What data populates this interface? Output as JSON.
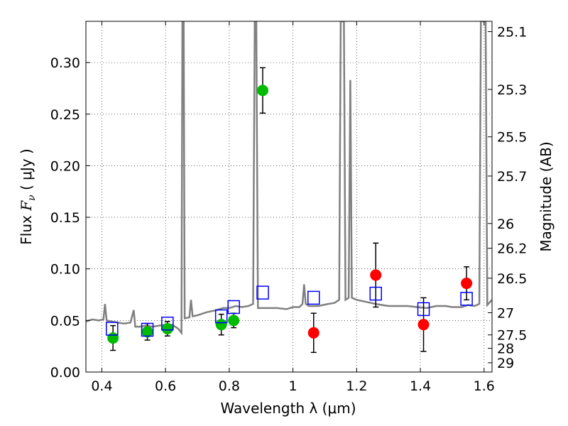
{
  "chart_data": {
    "type": "scatter",
    "xlabel": "Wavelength  λ (μm)",
    "ylabel": "Flux  F_ν  ( μJy )",
    "ylabel_right": "Magnitude (AB)",
    "xlim": [
      0.35,
      1.625
    ],
    "ylim": [
      0.0,
      0.34
    ],
    "grid": true,
    "x_ticks": [
      0.4,
      0.6,
      0.8,
      1.0,
      1.2,
      1.4,
      1.6
    ],
    "x_tick_labels": [
      "0.4",
      "0.6",
      "0.8",
      "1",
      "1.2",
      "1.4",
      "1.6"
    ],
    "y_ticks": [
      0.0,
      0.05,
      0.1,
      0.15,
      0.2,
      0.25,
      0.3
    ],
    "y_tick_labels": [
      "0.00",
      "0.05",
      "0.10",
      "0.15",
      "0.20",
      "0.25",
      "0.30"
    ],
    "right_ticks": [
      {
        "label": "25.1",
        "flux": 0.33
      },
      {
        "label": "25.3",
        "flux": 0.274
      },
      {
        "label": "25.5",
        "flux": 0.228
      },
      {
        "label": "25.7",
        "flux": 0.19
      },
      {
        "label": "26",
        "flux": 0.144
      },
      {
        "label": "26.2",
        "flux": 0.12
      },
      {
        "label": "26.5",
        "flux": 0.091
      },
      {
        "label": "27",
        "flux": 0.0575
      },
      {
        "label": "27.5",
        "flux": 0.036
      },
      {
        "label": "28",
        "flux": 0.023
      },
      {
        "label": "29",
        "flux": 0.009
      }
    ],
    "series": [
      {
        "color": "#00bb00",
        "marker": "circle",
        "points": [
          {
            "x": 0.435,
            "y": 0.033,
            "err": 0.012
          },
          {
            "x": 0.543,
            "y": 0.039,
            "err": 0.008
          },
          {
            "x": 0.606,
            "y": 0.042,
            "err": 0.007
          },
          {
            "x": 0.775,
            "y": 0.046,
            "err": 0.01
          },
          {
            "x": 0.814,
            "y": 0.05,
            "err": 0.007
          },
          {
            "x": 0.905,
            "y": 0.273,
            "err": 0.022
          }
        ]
      },
      {
        "color": "#ff0000",
        "marker": "circle",
        "points": [
          {
            "x": 1.065,
            "y": 0.038,
            "err": 0.019
          },
          {
            "x": 1.26,
            "y": 0.094,
            "err": 0.031
          },
          {
            "x": 1.41,
            "y": 0.046,
            "err": 0.026
          },
          {
            "x": 1.545,
            "y": 0.086,
            "err": 0.016
          }
        ]
      },
      {
        "color": "#0000ff",
        "marker": "open-square",
        "points": [
          {
            "x": 0.432,
            "y": 0.042
          },
          {
            "x": 0.543,
            "y": 0.041
          },
          {
            "x": 0.606,
            "y": 0.047
          },
          {
            "x": 0.775,
            "y": 0.054
          },
          {
            "x": 0.814,
            "y": 0.063
          },
          {
            "x": 0.905,
            "y": 0.077
          },
          {
            "x": 1.065,
            "y": 0.072
          },
          {
            "x": 1.26,
            "y": 0.076
          },
          {
            "x": 1.41,
            "y": 0.061
          },
          {
            "x": 1.545,
            "y": 0.071
          }
        ]
      }
    ],
    "model_spectrum": {
      "color": "#808080",
      "points": [
        [
          0.35,
          0.049
        ],
        [
          0.37,
          0.051
        ],
        [
          0.39,
          0.05
        ],
        [
          0.405,
          0.051
        ],
        [
          0.41,
          0.066
        ],
        [
          0.415,
          0.05
        ],
        [
          0.43,
          0.049
        ],
        [
          0.45,
          0.048
        ],
        [
          0.47,
          0.047
        ],
        [
          0.49,
          0.048
        ],
        [
          0.5,
          0.06
        ],
        [
          0.505,
          0.044
        ],
        [
          0.52,
          0.044
        ],
        [
          0.54,
          0.045
        ],
        [
          0.56,
          0.044
        ],
        [
          0.58,
          0.045
        ],
        [
          0.6,
          0.046
        ],
        [
          0.62,
          0.046
        ],
        [
          0.64,
          0.042
        ],
        [
          0.65,
          0.038
        ],
        [
          0.653,
          0.34
        ],
        [
          0.657,
          0.34
        ],
        [
          0.66,
          0.052
        ],
        [
          0.675,
          0.053
        ],
        [
          0.68,
          0.07
        ],
        [
          0.685,
          0.054
        ],
        [
          0.7,
          0.055
        ],
        [
          0.73,
          0.058
        ],
        [
          0.76,
          0.06
        ],
        [
          0.78,
          0.062
        ],
        [
          0.8,
          0.062
        ],
        [
          0.82,
          0.064
        ],
        [
          0.84,
          0.063
        ],
        [
          0.86,
          0.064
        ],
        [
          0.875,
          0.066
        ],
        [
          0.88,
          0.34
        ],
        [
          0.885,
          0.34
        ],
        [
          0.89,
          0.062
        ],
        [
          0.92,
          0.062
        ],
        [
          0.95,
          0.062
        ],
        [
          0.98,
          0.061
        ],
        [
          1.0,
          0.063
        ],
        [
          1.02,
          0.063
        ],
        [
          1.03,
          0.066
        ],
        [
          1.035,
          0.085
        ],
        [
          1.04,
          0.066
        ],
        [
          1.05,
          0.064
        ],
        [
          1.08,
          0.064
        ],
        [
          1.11,
          0.066
        ],
        [
          1.13,
          0.067
        ],
        [
          1.145,
          0.07
        ],
        [
          1.15,
          0.34
        ],
        [
          1.16,
          0.34
        ],
        [
          1.165,
          0.07
        ],
        [
          1.175,
          0.072
        ],
        [
          1.18,
          0.283
        ],
        [
          1.185,
          0.072
        ],
        [
          1.2,
          0.07
        ],
        [
          1.23,
          0.068
        ],
        [
          1.26,
          0.066
        ],
        [
          1.28,
          0.065
        ],
        [
          1.3,
          0.064
        ],
        [
          1.33,
          0.064
        ],
        [
          1.36,
          0.064
        ],
        [
          1.39,
          0.063
        ],
        [
          1.42,
          0.062
        ],
        [
          1.45,
          0.064
        ],
        [
          1.48,
          0.064
        ],
        [
          1.5,
          0.063
        ],
        [
          1.53,
          0.063
        ],
        [
          1.55,
          0.065
        ],
        [
          1.57,
          0.064
        ],
        [
          1.585,
          0.066
        ],
        [
          1.59,
          0.34
        ],
        [
          1.605,
          0.34
        ],
        [
          1.61,
          0.065
        ],
        [
          1.625,
          0.07
        ]
      ]
    }
  }
}
